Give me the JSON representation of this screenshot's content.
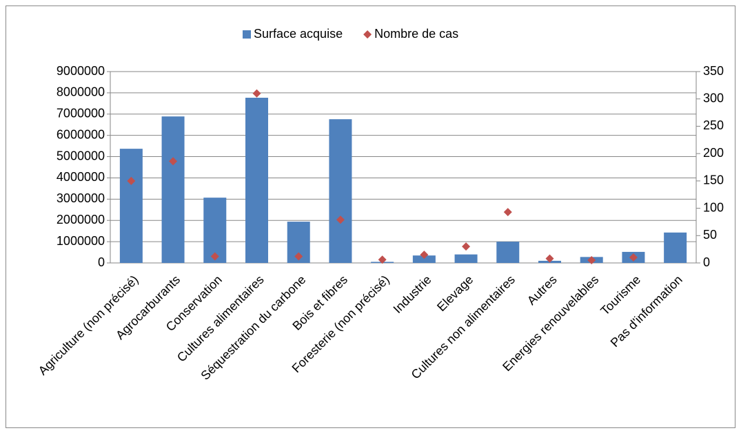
{
  "chart_data": {
    "type": "bar",
    "categories": [
      "Agriculture (non précisé)",
      "Agrocarburants",
      "Conservation",
      "Cultures alimentaires",
      "Séquestration du carbone",
      "Bois et fibres",
      "Foresterie (non précisé)",
      "Industrie",
      "Elevage",
      "Cultures non alimentaires",
      "Autres",
      "Energies renouvelables",
      "Tourisme",
      "Pas d'information"
    ],
    "series": [
      {
        "name": "Surface acquise",
        "color": "#4f81bd",
        "type": "bar",
        "axis": "y",
        "values": [
          5370000,
          6890000,
          3070000,
          7770000,
          1940000,
          6760000,
          50000,
          350000,
          400000,
          1000000,
          100000,
          280000,
          520000,
          1430000
        ]
      },
      {
        "name": "Nombre de cas",
        "color": "#c0504d",
        "type": "scatter",
        "axis": "y2",
        "values": [
          150,
          186,
          12,
          310,
          12,
          79,
          6,
          15,
          30,
          93,
          8,
          5,
          10,
          null
        ]
      }
    ],
    "ylim": [
      0,
      9000000
    ],
    "yticks": [
      0,
      1000000,
      2000000,
      3000000,
      4000000,
      5000000,
      6000000,
      7000000,
      8000000,
      9000000
    ],
    "y2lim": [
      0,
      350
    ],
    "y2ticks": [
      0,
      50,
      100,
      150,
      200,
      250,
      300,
      350
    ],
    "grid": true,
    "legend": "top"
  }
}
